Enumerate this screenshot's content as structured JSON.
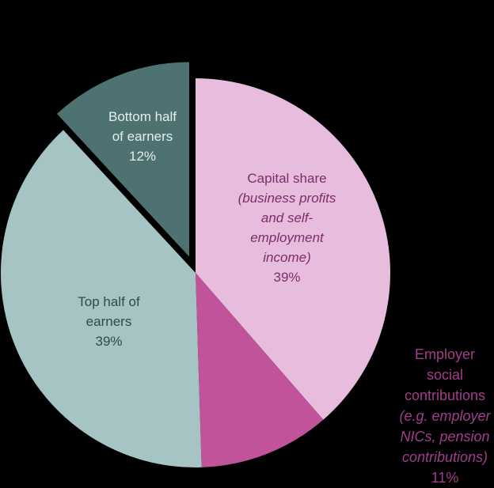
{
  "chart_data": {
    "type": "pie",
    "title": "",
    "start_angle": "12 o'clock, clockwise",
    "slices": [
      {
        "name": "Capital share",
        "note": "(business profits and self-employment income)",
        "value": 39,
        "label": "39%",
        "color": "#e8bcdc",
        "exploded": false
      },
      {
        "name": "Employer social contributions",
        "note": "(e.g. employer NICs, pension contributions)",
        "value": 11,
        "label": "11%",
        "color": "#c05399",
        "exploded": false
      },
      {
        "name": "Top half of earners",
        "note": "",
        "value": 39,
        "label": "39%",
        "color": "#a6c4c3",
        "exploded": false
      },
      {
        "name": "Bottom half of earners",
        "note": "",
        "value": 12,
        "label": "12%",
        "color": "#4e7271",
        "exploded": true
      }
    ],
    "legend": "none (data labels on slices)"
  },
  "labels": {
    "bottom": {
      "name_line1": "Bottom half",
      "name_line2": "of earners",
      "pct": "12%"
    },
    "capital": {
      "name": "Capital share",
      "note_line1": "(business profits",
      "note_line2": "and self-",
      "note_line3": "employment",
      "note_line4": "income)",
      "pct": "39%"
    },
    "top": {
      "name_line1": "Top half of",
      "name_line2": "earners",
      "pct": "39%"
    },
    "employer": {
      "name_line1": "Employer",
      "name_line2": "social",
      "name_line3": "contributions",
      "note_line1": "(e.g. employer",
      "note_line2": "NICs, pension",
      "note_line3": "contributions)",
      "pct": "11%"
    }
  }
}
